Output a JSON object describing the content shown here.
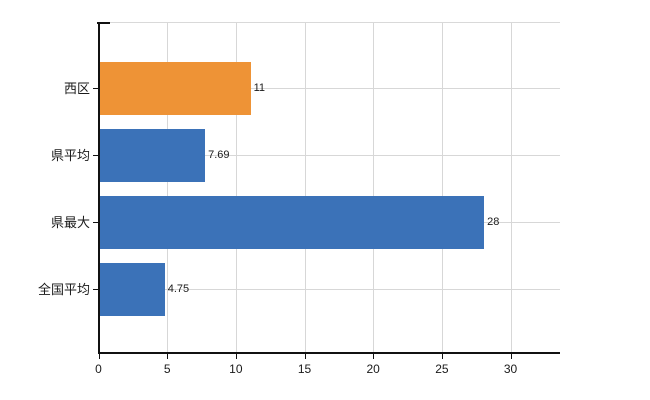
{
  "chart_data": {
    "type": "bar",
    "orientation": "horizontal",
    "title": "",
    "xlabel": "",
    "ylabel": "",
    "categories": [
      "西区",
      "県平均",
      "県最大",
      "全国平均"
    ],
    "values": [
      11,
      7.69,
      28,
      4.75
    ],
    "value_labels": [
      "11",
      "7.69",
      "28",
      "4.75"
    ],
    "bar_colors": [
      "#ee9336",
      "#3b72b8",
      "#3b72b8",
      "#3b72b8"
    ],
    "xticks": [
      0,
      5,
      10,
      15,
      20,
      25,
      30
    ],
    "xtick_labels": [
      "0",
      "5",
      "10",
      "15",
      "20",
      "25",
      "30"
    ],
    "xlim": [
      0,
      33.6
    ],
    "grid": true,
    "grid_color": "#d7d7d7",
    "axis_color": "#111111",
    "text_color": "#1a1a1a",
    "background_color": "#ffffff",
    "legend": null
  }
}
